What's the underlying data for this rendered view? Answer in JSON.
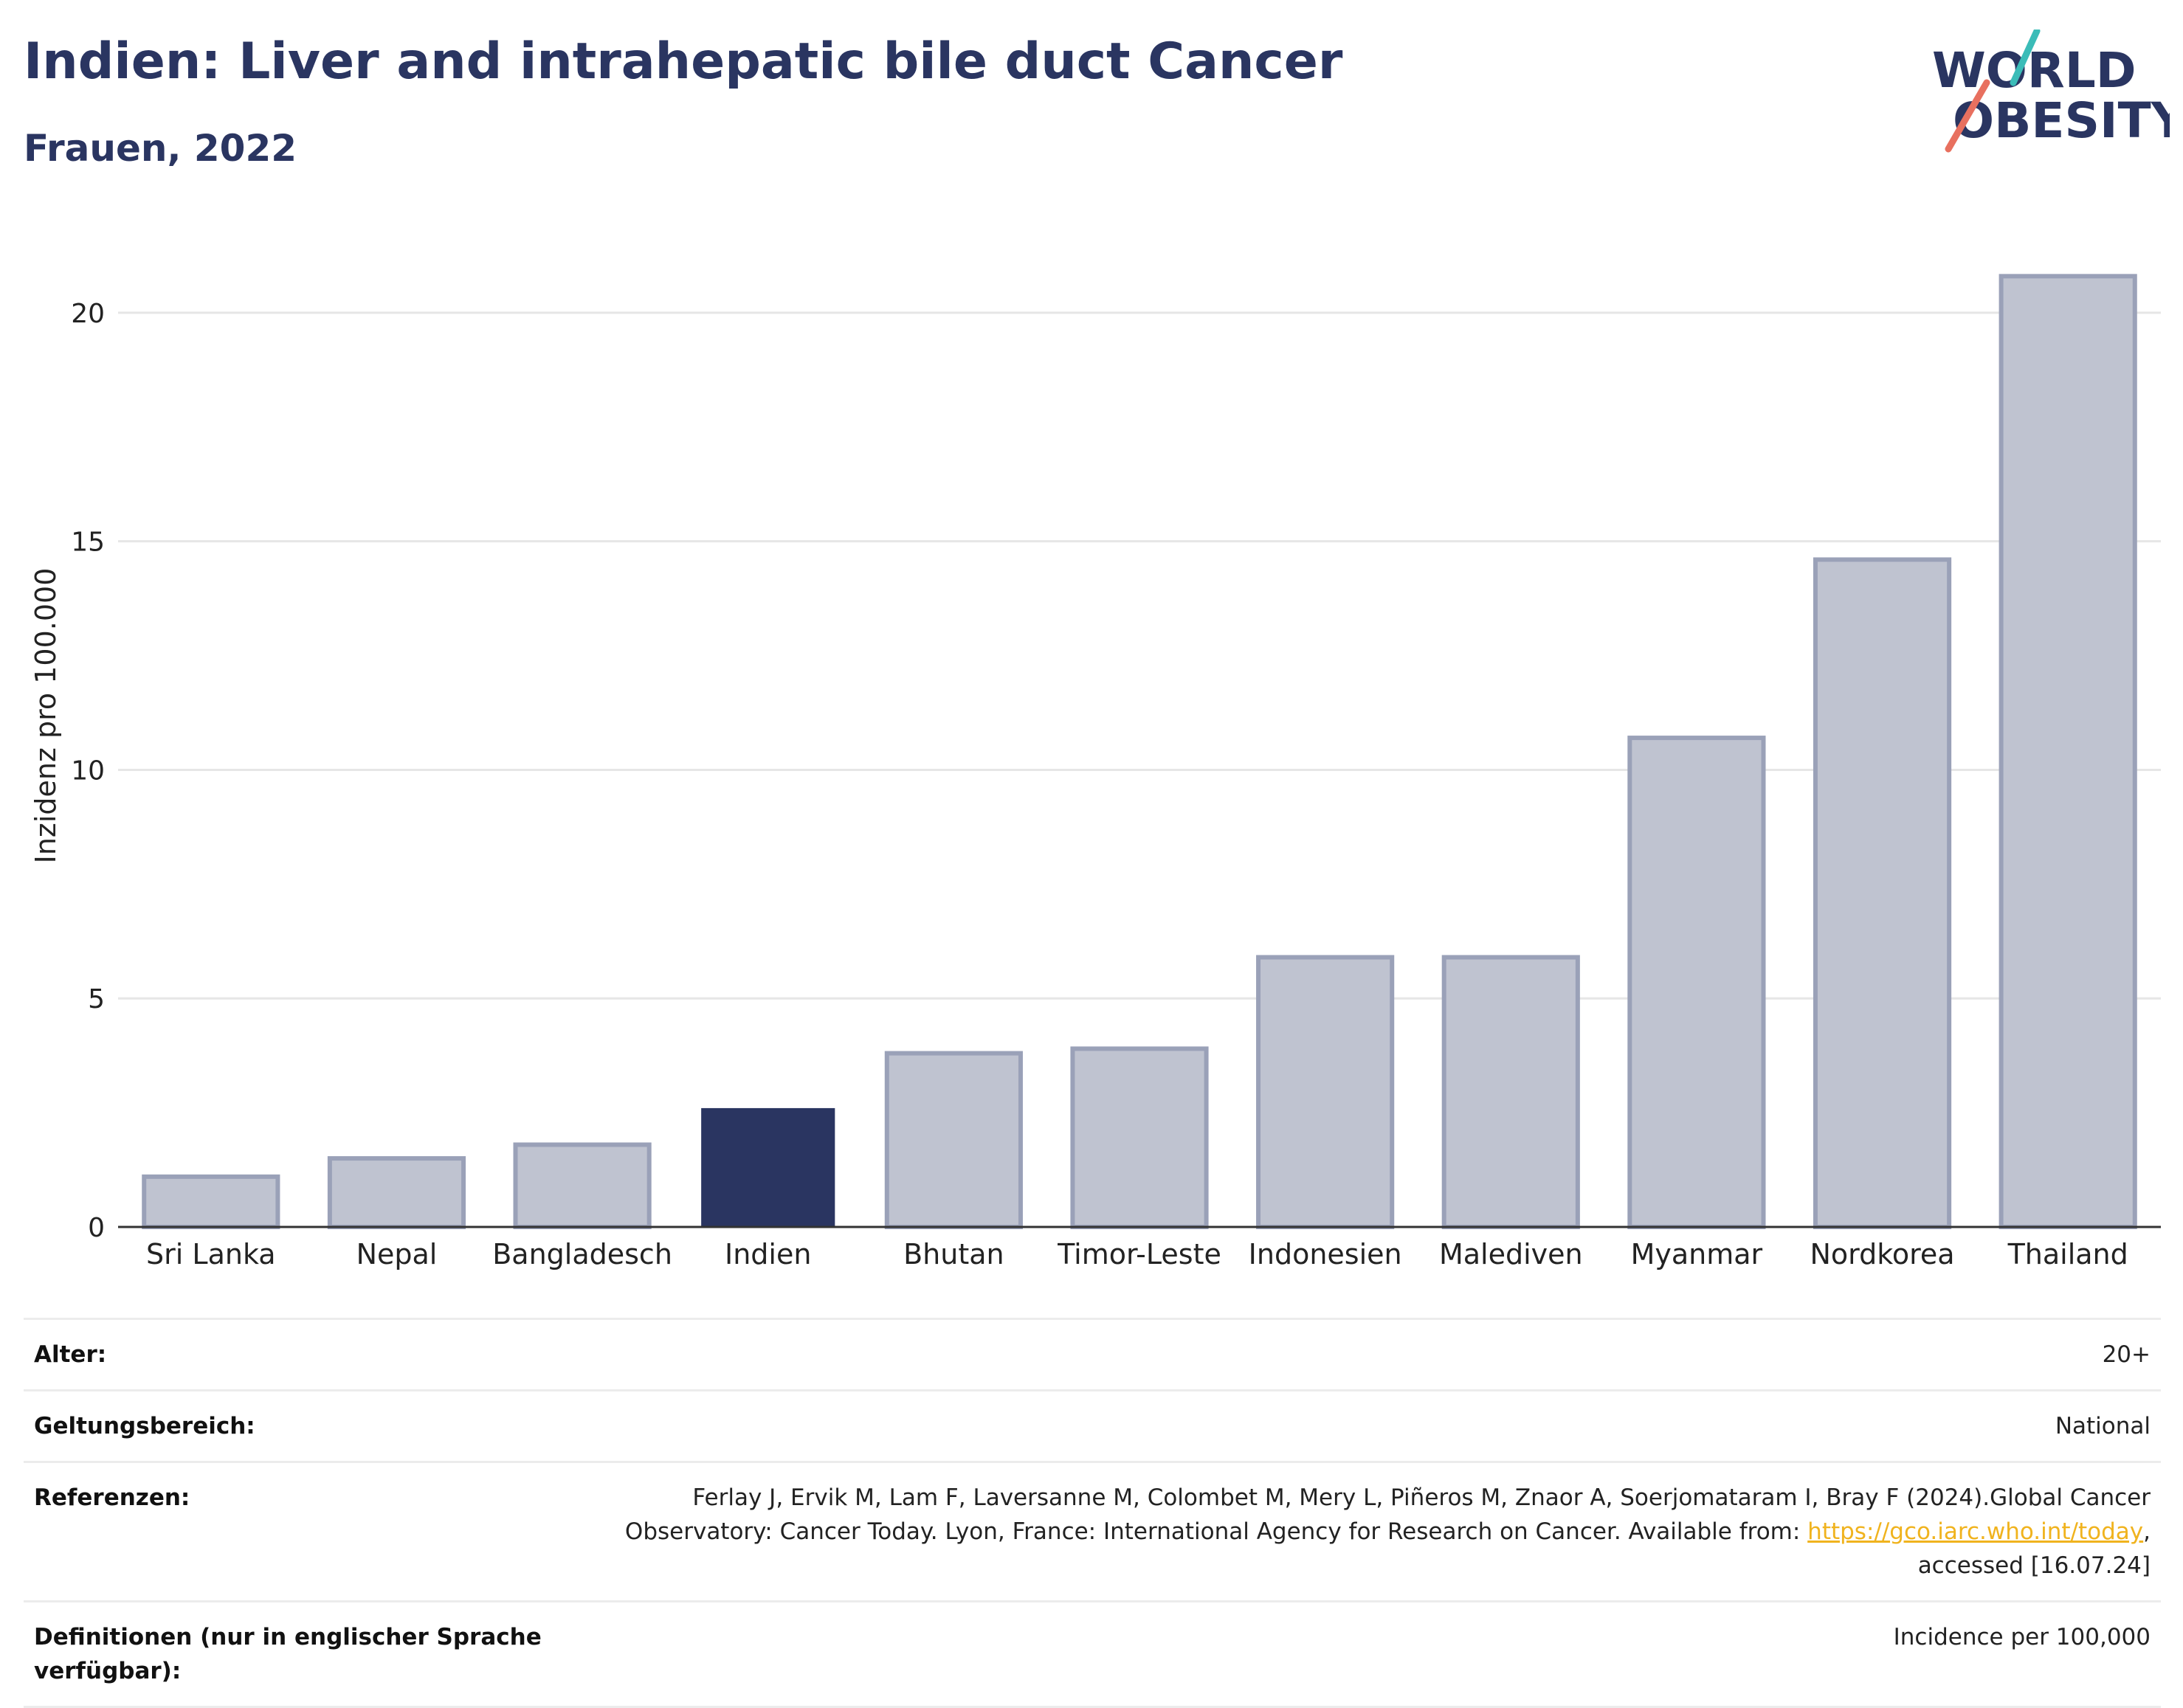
{
  "header": {
    "title": "Indien: Liver and intrahepatic bile duct Cancer",
    "subtitle": "Frauen, 2022"
  },
  "logo": {
    "line1": "WORLD",
    "line2": "OBESITY",
    "colors": {
      "navy": "#2a3561",
      "teal": "#3bbcb8",
      "coral": "#e8705f"
    }
  },
  "colors": {
    "highlight": "#2a3561",
    "bar_fill": "#bfc3d0",
    "bar_stroke": "#9aa1b8",
    "grid": "#e6e6e6",
    "axis": "#333333",
    "link": "#f0b31e"
  },
  "chart_data": {
    "type": "bar",
    "categories": [
      "Sri Lanka",
      "Nepal",
      "Bangladesch",
      "Indien",
      "Bhutan",
      "Timor-Leste",
      "Indonesien",
      "Malediven",
      "Myanmar",
      "Nordkorea",
      "Thailand"
    ],
    "values": [
      1.1,
      1.5,
      1.8,
      2.6,
      3.8,
      3.9,
      5.9,
      5.9,
      10.7,
      14.6,
      20.8
    ],
    "highlight": "Indien",
    "title": "",
    "xlabel": "",
    "ylabel": "Inzidenz pro 100.000",
    "ylim": [
      0,
      22
    ],
    "yticks": [
      0,
      5,
      10,
      15,
      20
    ],
    "grid": true
  },
  "meta": [
    {
      "label": "Alter:",
      "value": "20+"
    },
    {
      "label": "Geltungsbereich:",
      "value": "National"
    },
    {
      "label": "Referenzen:",
      "value_pre": "Ferlay J, Ervik M, Lam F, Laversanne M, Colombet M, Mery L, Piñeros M, Znaor A, Soerjomataram I, Bray F (2024).Global Cancer Observatory: Cancer Today. Lyon, France: International Agency for Research on Cancer. Available from: ",
      "link": "https://gco.iarc.who.int/today",
      "value_post": ", accessed [16.07.24]"
    },
    {
      "label": "Definitionen (nur in englischer Sprache verfügbar):",
      "value": "Incidence per 100,000"
    }
  ]
}
